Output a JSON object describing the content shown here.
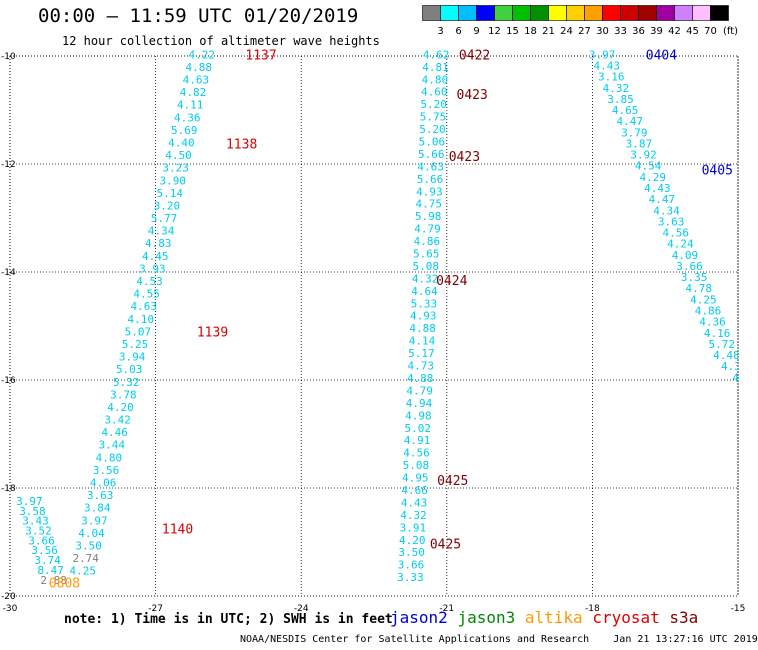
{
  "header": {
    "title": "00:00 – 11:59 UTC 01/20/2019",
    "subtitle": "12 hour collection of altimeter wave heights"
  },
  "colorbar": {
    "colors": [
      "#7f7f7f",
      "#00ffff",
      "#00bfff",
      "#0000ff",
      "#3fd13f",
      "#00c000",
      "#009000",
      "#ffff00",
      "#ffcf00",
      "#ff9f00",
      "#ff0000",
      "#cf0000",
      "#9f0000",
      "#9f009f",
      "#cf7fff",
      "#ffbfff",
      "#000000"
    ],
    "labels": [
      "3",
      "6",
      "9",
      "12",
      "15",
      "18",
      "21",
      "24",
      "27",
      "30",
      "33",
      "36",
      "39",
      "42",
      "45",
      "70"
    ],
    "unit": "(ft)"
  },
  "chart_data": {
    "type": "scatter",
    "title": "12 hour collection of altimeter wave heights",
    "xlabel": "",
    "ylabel": "",
    "xlim": [
      -30,
      -15
    ],
    "ylim": [
      -20,
      -10
    ],
    "grid": true,
    "x_ticks": [
      -30,
      -27,
      -24,
      -21,
      -18,
      -15
    ],
    "y_ticks": [
      -10,
      -12,
      -14,
      -16,
      -18,
      -20
    ],
    "wave_color": "#00ccee",
    "low_color": "#7f7f7f",
    "tracks": [
      {
        "sat": "cryosat",
        "x0": -26.05,
        "y0": -9.97,
        "x1": -28.5,
        "y1": -19.53,
        "values": [
          "4.22",
          "4.88",
          "4.63",
          "4.82",
          "4.11",
          "4.36",
          "5.69",
          "4.40",
          "4.50",
          "3.23",
          "3.90",
          "5.14",
          "3.20",
          "5.77",
          "4.34",
          "4.83",
          "4.45",
          "3.93",
          "4.53",
          "4.55",
          "4.63",
          "4.10",
          "5.07",
          "5.25",
          "3.94",
          "5.03",
          "5.32",
          "3.78",
          "4.20",
          "3.42",
          "4.46",
          "3.44",
          "4.80",
          "3.56",
          "4.06",
          "3.63",
          "3.84",
          "3.97",
          "4.04",
          "3.50",
          "2.74",
          "4.25"
        ]
      },
      {
        "sat": "jason2",
        "x0": -21.22,
        "y0": -9.97,
        "x1": -21.75,
        "y1": -19.65,
        "values": [
          "4.62",
          "4.81",
          "4.80",
          "4.60",
          "5.20",
          "5.75",
          "5.20",
          "5.06",
          "5.66",
          "4.63",
          "5.66",
          "4.93",
          "4.75",
          "5.98",
          "4.79",
          "4.86",
          "5.65",
          "5.08",
          "4.32",
          "4.64",
          "5.33",
          "4.93",
          "4.88",
          "4.14",
          "5.17",
          "4.73",
          "4.88",
          "4.79",
          "4.94",
          "4.98",
          "5.02",
          "4.91",
          "4.56",
          "5.08",
          "4.95",
          "4.66",
          "4.43",
          "4.32",
          "3.91",
          "4.20",
          "3.50",
          "3.66",
          "3.33"
        ]
      },
      {
        "sat": "jason2",
        "x0": -17.8,
        "y0": -9.97,
        "x1": -15.05,
        "y1": -15.95,
        "values": [
          "3.97",
          "4.43",
          "3.16",
          "4.32",
          "3.85",
          "4.65",
          "4.47",
          "3.79",
          "3.87",
          "3.92",
          "4.54",
          "4.29",
          "4.43",
          "4.47",
          "4.34",
          "3.63",
          "4.56",
          "4.24",
          "4.09",
          "3.66",
          "3.35",
          "4.78",
          "4.25",
          "4.86",
          "4.36",
          "4.16",
          "5.72",
          "4.48",
          "4.3",
          "4"
        ]
      },
      {
        "sat": "cryosat",
        "x0": -29.6,
        "y0": -18.24,
        "x1": -29.1,
        "y1": -19.7,
        "values": [
          "3.97",
          "3.58",
          "3.43",
          "3.52",
          "3.66",
          "3.56",
          "3.74",
          "8.47",
          "2.88"
        ]
      }
    ],
    "annotations": [
      {
        "text": "1137",
        "x": -25.15,
        "y": -9.97,
        "sat": "cryosat"
      },
      {
        "text": "1138",
        "x": -25.55,
        "y": -11.62,
        "sat": "cryosat"
      },
      {
        "text": "1139",
        "x": -26.15,
        "y": -15.1,
        "sat": "cryosat"
      },
      {
        "text": "1140",
        "x": -26.87,
        "y": -18.75,
        "sat": "cryosat"
      },
      {
        "text": "0808",
        "x": -29.2,
        "y": -19.75,
        "sat": "altika"
      },
      {
        "text": "0422",
        "x": -20.75,
        "y": -9.97,
        "sat": "s3a"
      },
      {
        "text": "0423",
        "x": -20.8,
        "y": -10.7,
        "sat": "s3a"
      },
      {
        "text": "0423",
        "x": -20.96,
        "y": -11.85,
        "sat": "s3a"
      },
      {
        "text": "0424",
        "x": -21.22,
        "y": -14.15,
        "sat": "s3a"
      },
      {
        "text": "0425",
        "x": -21.2,
        "y": -17.85,
        "sat": "s3a"
      },
      {
        "text": "0425",
        "x": -21.35,
        "y": -19.03,
        "sat": "s3a"
      },
      {
        "text": "0404",
        "x": -16.9,
        "y": -9.97,
        "sat": "jason2"
      },
      {
        "text": "0405",
        "x": -15.75,
        "y": -12.1,
        "sat": "jason2"
      }
    ]
  },
  "footer": {
    "note": "note: 1) Time is in UTC; 2) SWH is in feet",
    "satellites": [
      {
        "name": "jason2",
        "color": "#0000cc"
      },
      {
        "name": "jason3",
        "color": "#008800"
      },
      {
        "name": "altika",
        "color": "#ff9900"
      },
      {
        "name": "cryosat",
        "color": "#dd0000"
      },
      {
        "name": "s3a",
        "color": "#800000"
      }
    ],
    "credit": "NOAA/NESDIS Center for Satellite Applications and Research    Jan 21 13:27:16 UTC 2019"
  }
}
